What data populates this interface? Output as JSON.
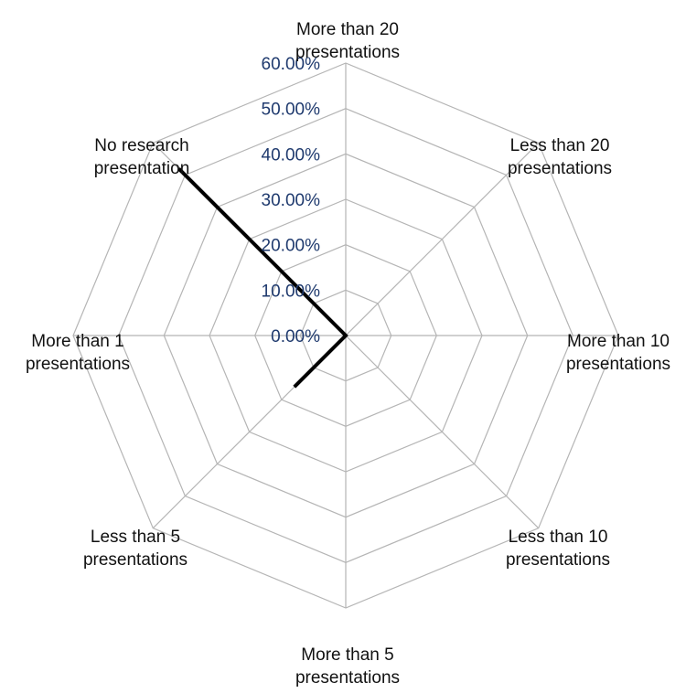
{
  "chart_data": {
    "type": "radar",
    "categories": [
      [
        "More than 20",
        "presentations"
      ],
      [
        "Less than 20",
        "presentations"
      ],
      [
        "More than 10",
        "presentations"
      ],
      [
        "Less than 10",
        "presentations"
      ],
      [
        "More than 5",
        "presentations"
      ],
      [
        "Less than 5",
        "presentations"
      ],
      [
        "More than 1",
        "presentations"
      ],
      [
        "No research",
        "presentation"
      ]
    ],
    "series": [
      {
        "values": [
          0,
          0,
          0,
          0,
          0,
          16,
          0,
          52
        ],
        "color": "#000000"
      }
    ],
    "rlim": [
      0,
      60
    ],
    "ticks": [
      "0.00%",
      "10.00%",
      "20.00%",
      "30.00%",
      "40.00%",
      "50.00%",
      "60.00%"
    ],
    "tick_color": "#1f3a6e",
    "grid": true
  }
}
